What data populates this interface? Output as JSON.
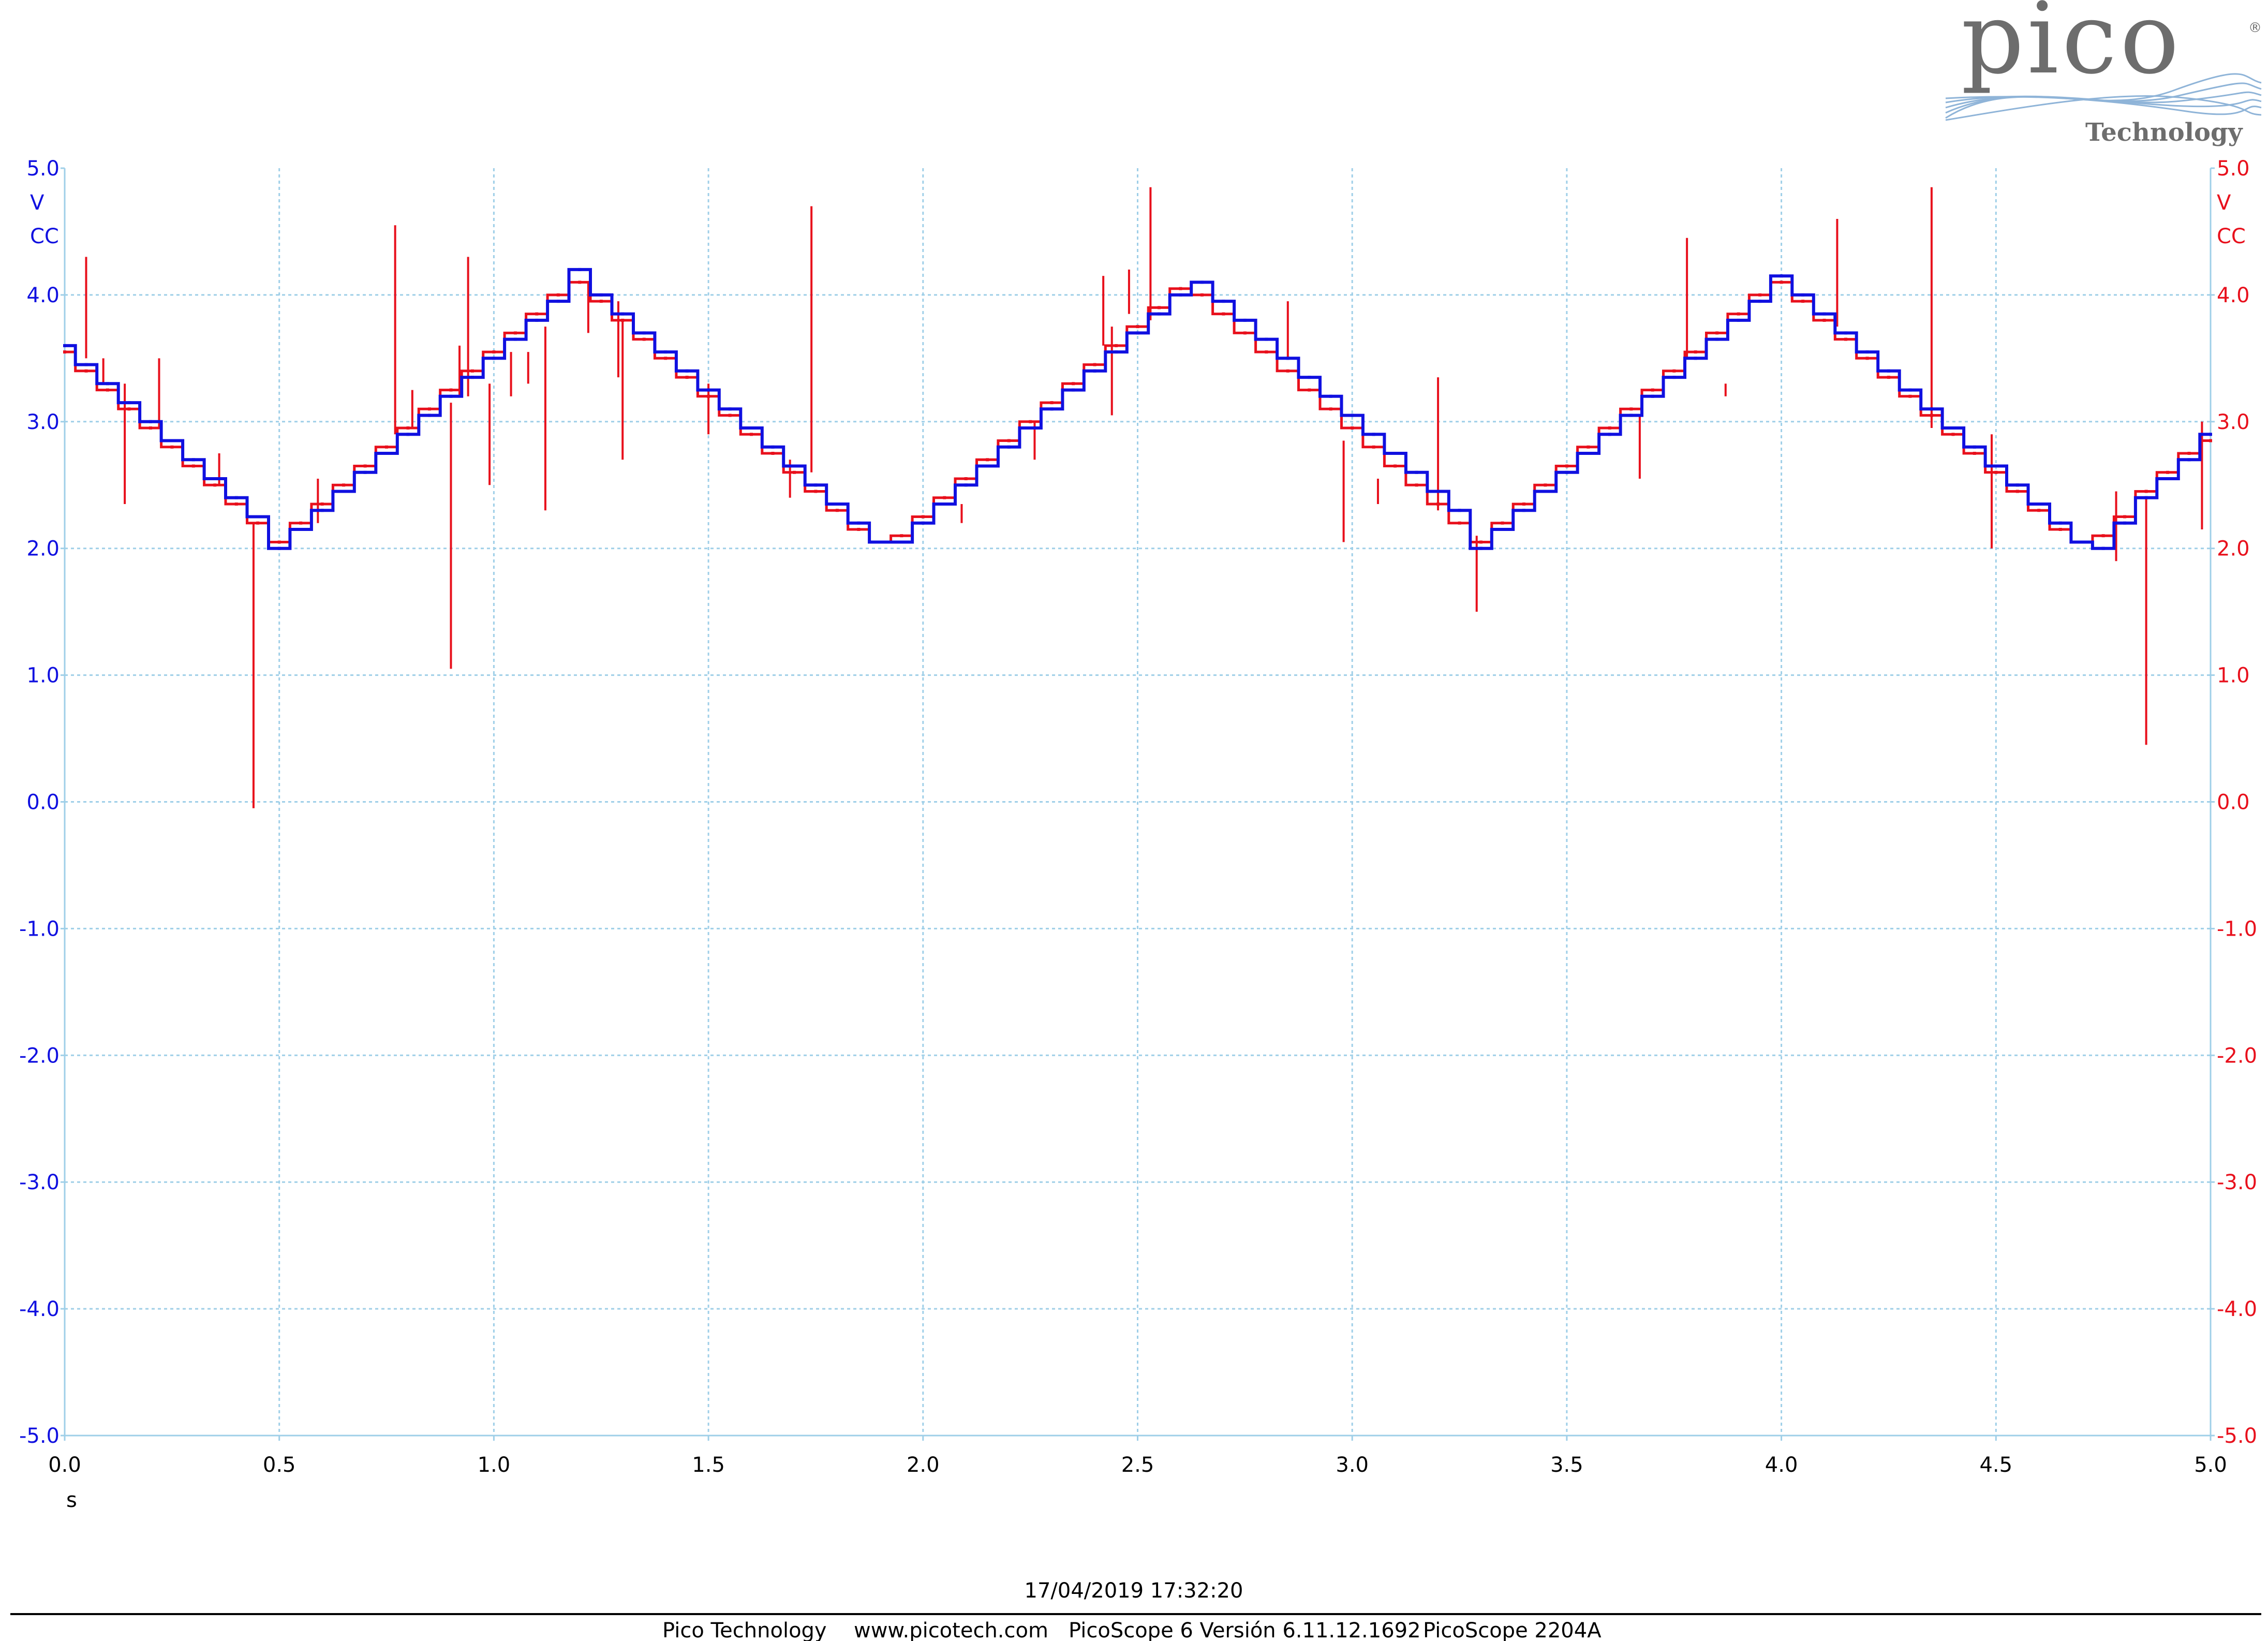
{
  "logo": {
    "brand": "pico",
    "sub": "Technology",
    "registered": "®",
    "colors": {
      "brand": "#6d6d6d",
      "waves": "#8fb4d8"
    }
  },
  "chart_data": {
    "type": "line",
    "xlabel": "s",
    "xlim": [
      0,
      5
    ],
    "x_ticks": [
      "0.0",
      "0.5",
      "1.0",
      "1.5",
      "2.0",
      "2.5",
      "3.0",
      "3.5",
      "4.0",
      "4.5",
      "5.0"
    ],
    "ylim": [
      -5,
      5
    ],
    "y_ticks": [
      "5.0",
      "4.0",
      "3.0",
      "2.0",
      "1.0",
      "0.0",
      "-1.0",
      "-2.0",
      "-3.0",
      "-4.0",
      "-5.0"
    ],
    "left_axis": {
      "unit": "V",
      "coupling": "CC",
      "color": "#1010e0"
    },
    "right_axis": {
      "unit": "V",
      "coupling": "CC",
      "color": "#e8101c"
    },
    "grid": true,
    "grid_color": "#9fcfe8",
    "series": [
      {
        "id": "A",
        "color": "#1010e0",
        "x": [
          0.0,
          0.05,
          0.1,
          0.15,
          0.2,
          0.25,
          0.3,
          0.35,
          0.4,
          0.45,
          0.5,
          0.55,
          0.6,
          0.65,
          0.7,
          0.75,
          0.8,
          0.85,
          0.9,
          0.95,
          1.0,
          1.05,
          1.1,
          1.15,
          1.2,
          1.25,
          1.3,
          1.35,
          1.4,
          1.45,
          1.5,
          1.55,
          1.6,
          1.65,
          1.7,
          1.75,
          1.8,
          1.85,
          1.9,
          1.95,
          2.0,
          2.05,
          2.1,
          2.15,
          2.2,
          2.25,
          2.3,
          2.35,
          2.4,
          2.45,
          2.5,
          2.55,
          2.6,
          2.65,
          2.7,
          2.75,
          2.8,
          2.85,
          2.9,
          2.95,
          3.0,
          3.05,
          3.1,
          3.15,
          3.2,
          3.25,
          3.3,
          3.35,
          3.4,
          3.45,
          3.5,
          3.55,
          3.6,
          3.65,
          3.7,
          3.75,
          3.8,
          3.85,
          3.9,
          3.95,
          4.0,
          4.05,
          4.1,
          4.15,
          4.2,
          4.25,
          4.3,
          4.35,
          4.4,
          4.45,
          4.5,
          4.55,
          4.6,
          4.65,
          4.7,
          4.75,
          4.8,
          4.85,
          4.9,
          4.95,
          5.0
        ],
        "y": [
          3.6,
          3.45,
          3.3,
          3.15,
          3.0,
          2.85,
          2.7,
          2.55,
          2.4,
          2.25,
          2.0,
          2.15,
          2.3,
          2.45,
          2.6,
          2.75,
          2.9,
          3.05,
          3.2,
          3.35,
          3.5,
          3.65,
          3.8,
          3.95,
          4.2,
          4.0,
          3.85,
          3.7,
          3.55,
          3.4,
          3.25,
          3.1,
          2.95,
          2.8,
          2.65,
          2.5,
          2.35,
          2.2,
          2.05,
          2.05,
          2.2,
          2.35,
          2.5,
          2.65,
          2.8,
          2.95,
          3.1,
          3.25,
          3.4,
          3.55,
          3.7,
          3.85,
          4.0,
          4.1,
          3.95,
          3.8,
          3.65,
          3.5,
          3.35,
          3.2,
          3.05,
          2.9,
          2.75,
          2.6,
          2.45,
          2.3,
          2.0,
          2.15,
          2.3,
          2.45,
          2.6,
          2.75,
          2.9,
          3.05,
          3.2,
          3.35,
          3.5,
          3.65,
          3.8,
          3.95,
          4.15,
          4.0,
          3.85,
          3.7,
          3.55,
          3.4,
          3.25,
          3.1,
          2.95,
          2.8,
          2.65,
          2.5,
          2.35,
          2.2,
          2.05,
          2.0,
          2.2,
          2.4,
          2.55,
          2.7,
          2.9
        ]
      },
      {
        "id": "B",
        "color": "#e8101c",
        "x": [
          0.0,
          0.05,
          0.1,
          0.15,
          0.2,
          0.25,
          0.3,
          0.35,
          0.4,
          0.45,
          0.5,
          0.55,
          0.6,
          0.65,
          0.7,
          0.75,
          0.8,
          0.85,
          0.9,
          0.95,
          1.0,
          1.05,
          1.1,
          1.15,
          1.2,
          1.25,
          1.3,
          1.35,
          1.4,
          1.45,
          1.5,
          1.55,
          1.6,
          1.65,
          1.7,
          1.75,
          1.8,
          1.85,
          1.9,
          1.95,
          2.0,
          2.05,
          2.1,
          2.15,
          2.2,
          2.25,
          2.3,
          2.35,
          2.4,
          2.45,
          2.5,
          2.55,
          2.6,
          2.65,
          2.7,
          2.75,
          2.8,
          2.85,
          2.9,
          2.95,
          3.0,
          3.05,
          3.1,
          3.15,
          3.2,
          3.25,
          3.3,
          3.35,
          3.4,
          3.45,
          3.5,
          3.55,
          3.6,
          3.65,
          3.7,
          3.75,
          3.8,
          3.85,
          3.9,
          3.95,
          4.0,
          4.05,
          4.1,
          4.15,
          4.2,
          4.25,
          4.3,
          4.35,
          4.4,
          4.45,
          4.5,
          4.55,
          4.6,
          4.65,
          4.7,
          4.75,
          4.8,
          4.85,
          4.9,
          4.95,
          5.0
        ],
        "y": [
          3.55,
          3.4,
          3.25,
          3.1,
          2.95,
          2.8,
          2.65,
          2.5,
          2.35,
          2.2,
          2.05,
          2.2,
          2.35,
          2.5,
          2.65,
          2.8,
          2.95,
          3.1,
          3.25,
          3.4,
          3.55,
          3.7,
          3.85,
          4.0,
          4.1,
          3.95,
          3.8,
          3.65,
          3.5,
          3.35,
          3.2,
          3.05,
          2.9,
          2.75,
          2.6,
          2.45,
          2.3,
          2.15,
          2.05,
          2.1,
          2.25,
          2.4,
          2.55,
          2.7,
          2.85,
          3.0,
          3.15,
          3.3,
          3.45,
          3.6,
          3.75,
          3.9,
          4.05,
          4.0,
          3.85,
          3.7,
          3.55,
          3.4,
          3.25,
          3.1,
          2.95,
          2.8,
          2.65,
          2.5,
          2.35,
          2.2,
          2.05,
          2.2,
          2.35,
          2.5,
          2.65,
          2.8,
          2.95,
          3.1,
          3.25,
          3.4,
          3.55,
          3.7,
          3.85,
          4.0,
          4.1,
          3.95,
          3.8,
          3.65,
          3.5,
          3.35,
          3.2,
          3.05,
          2.9,
          2.75,
          2.6,
          2.45,
          2.3,
          2.15,
          2.05,
          2.1,
          2.25,
          2.45,
          2.6,
          2.75,
          2.85
        ],
        "spikes": [
          [
            0.05,
            4.3,
            3.5
          ],
          [
            0.09,
            3.5,
            3.3
          ],
          [
            0.14,
            3.3,
            2.35
          ],
          [
            0.22,
            3.5,
            2.95
          ],
          [
            0.36,
            2.75,
            2.5
          ],
          [
            0.44,
            2.2,
            -0.05
          ],
          [
            0.59,
            2.55,
            2.2
          ],
          [
            0.77,
            4.55,
            2.9
          ],
          [
            0.81,
            3.25,
            2.95
          ],
          [
            0.9,
            3.15,
            1.05
          ],
          [
            0.92,
            3.6,
            3.2
          ],
          [
            0.94,
            4.3,
            3.2
          ],
          [
            0.99,
            3.3,
            2.5
          ],
          [
            1.04,
            3.55,
            3.2
          ],
          [
            1.08,
            3.55,
            3.3
          ],
          [
            1.12,
            3.75,
            2.3
          ],
          [
            1.22,
            4.1,
            3.7
          ],
          [
            1.29,
            3.95,
            3.35
          ],
          [
            1.3,
            3.8,
            2.7
          ],
          [
            1.5,
            3.3,
            2.9
          ],
          [
            1.74,
            4.7,
            2.6
          ],
          [
            1.69,
            2.7,
            2.4
          ],
          [
            2.09,
            2.35,
            2.2
          ],
          [
            2.26,
            3.0,
            2.7
          ],
          [
            2.42,
            4.15,
            3.6
          ],
          [
            2.44,
            3.75,
            3.05
          ],
          [
            2.48,
            4.2,
            3.85
          ],
          [
            2.53,
            4.85,
            3.8
          ],
          [
            2.85,
            3.95,
            3.5
          ],
          [
            2.98,
            2.85,
            2.05
          ],
          [
            3.06,
            2.55,
            2.35
          ],
          [
            3.2,
            3.35,
            2.3
          ],
          [
            3.29,
            2.1,
            1.5
          ],
          [
            3.67,
            3.05,
            2.55
          ],
          [
            3.78,
            4.45,
            3.5
          ],
          [
            3.87,
            3.3,
            3.2
          ],
          [
            4.13,
            4.6,
            3.75
          ],
          [
            4.35,
            4.85,
            2.95
          ],
          [
            4.49,
            2.9,
            2.0
          ],
          [
            4.78,
            2.45,
            1.9
          ],
          [
            4.85,
            2.4,
            0.45
          ],
          [
            4.98,
            3.0,
            2.15
          ]
        ]
      }
    ]
  },
  "footer": {
    "timestamp": "17/04/2019 17:32:20",
    "company": "Pico Technology",
    "website": "www.picotech.com",
    "software": "PicoScope 6 Versión 6.11.12.1692",
    "device": "PicoScope 2204A"
  }
}
